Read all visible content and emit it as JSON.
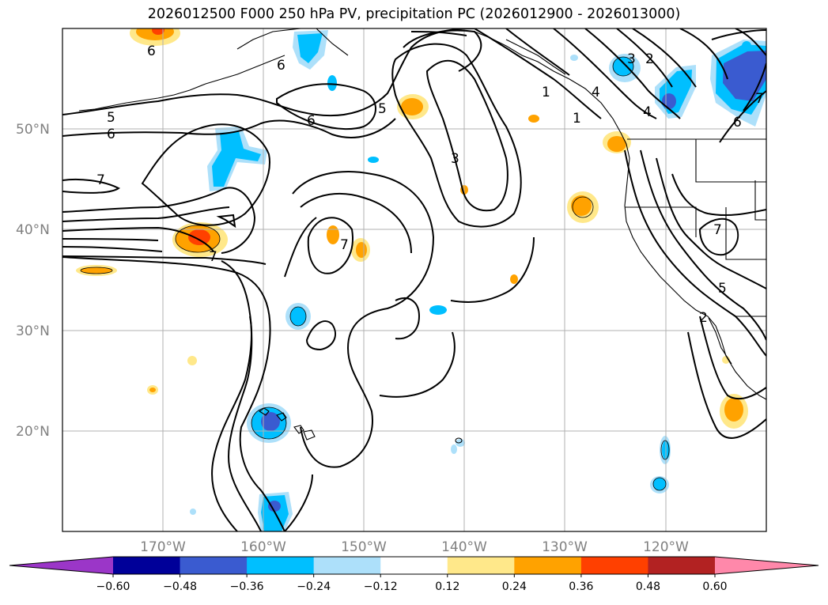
{
  "title": "2026012500 F000 250 hPa PV, precipitation PC (2026012900 - 2026013000)",
  "lat_labels": [
    "50°N",
    "40°N",
    "30°N",
    "20°N"
  ],
  "lon_labels": [
    "170°W",
    "160°W",
    "150°W",
    "140°W",
    "130°W",
    "120°W"
  ],
  "colorbar": {
    "ticks": [
      "−0.60",
      "−0.48",
      "−0.36",
      "−0.24",
      "−0.12",
      "0.12",
      "0.24",
      "0.36",
      "0.48",
      "0.60"
    ],
    "colors": [
      "#9b36c8",
      "#000099",
      "#3a5bd0",
      "#00bfff",
      "#ade0fa",
      "#ffffff",
      "#ffe88a",
      "#ffa200",
      "#ff4000",
      "#b22222",
      "#ff88aa"
    ]
  },
  "contour_labels": [
    {
      "text": "6"
    },
    {
      "text": "5"
    },
    {
      "text": "6"
    },
    {
      "text": "7"
    },
    {
      "text": "6"
    },
    {
      "text": "5"
    },
    {
      "text": "6"
    },
    {
      "text": "3"
    },
    {
      "text": "1"
    },
    {
      "text": "7"
    },
    {
      "text": "7"
    },
    {
      "text": "3"
    },
    {
      "text": "2"
    },
    {
      "text": "4"
    },
    {
      "text": "4"
    },
    {
      "text": "1"
    },
    {
      "text": "6"
    },
    {
      "text": "7"
    },
    {
      "text": "7"
    },
    {
      "text": "5"
    },
    {
      "text": "2"
    }
  ]
}
